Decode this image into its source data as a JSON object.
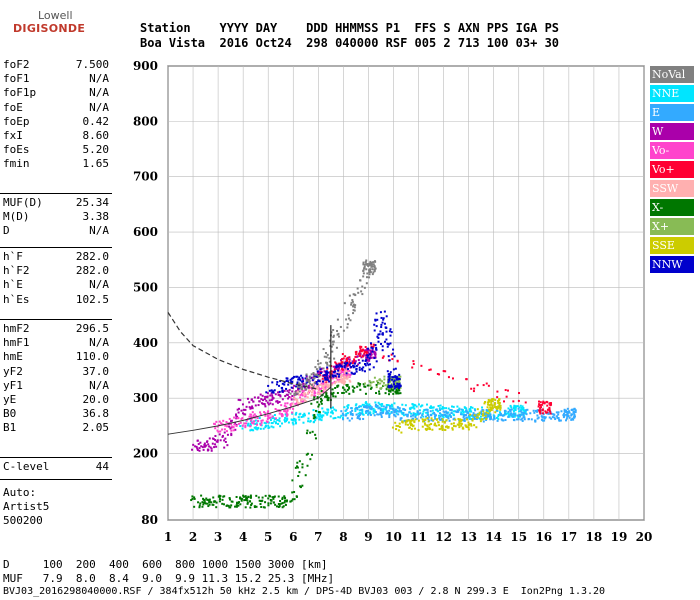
{
  "logo": {
    "line1": "Lowell",
    "line2": "DIGISONDE"
  },
  "header": {
    "row1": "Station    YYYY DAY    DDD HHMMSS P1  FFS S AXN PPS IGA PS",
    "row2": "Boa Vista  2016 Oct24  298 040000 RSF 005 2 713 100 03+ 30"
  },
  "params": {
    "group1": [
      {
        "label": "foF2",
        "value": "7.500"
      },
      {
        "label": "foF1",
        "value": "N/A"
      },
      {
        "label": "foF1p",
        "value": "N/A"
      },
      {
        "label": "foE",
        "value": "N/A"
      },
      {
        "label": "foEp",
        "value": "0.42"
      },
      {
        "label": "fxI",
        "value": "8.60"
      },
      {
        "label": "foEs",
        "value": "5.20"
      },
      {
        "label": "fmin",
        "value": "1.65"
      }
    ],
    "group2": [
      {
        "label": "MUF(D)",
        "value": "25.34"
      },
      {
        "label": "M(D)",
        "value": "3.38"
      },
      {
        "label": "D",
        "value": "N/A"
      }
    ],
    "group3": [
      {
        "label": "h`F",
        "value": "282.0"
      },
      {
        "label": "h`F2",
        "value": "282.0"
      },
      {
        "label": "h`E",
        "value": "N/A"
      },
      {
        "label": "h`Es",
        "value": "102.5"
      }
    ],
    "group4": [
      {
        "label": "hmF2",
        "value": "296.5"
      },
      {
        "label": "hmF1",
        "value": "N/A"
      },
      {
        "label": "hmE",
        "value": "110.0"
      },
      {
        "label": "yF2",
        "value": "37.0"
      },
      {
        "label": "yF1",
        "value": "N/A"
      },
      {
        "label": "yE",
        "value": "20.0"
      },
      {
        "label": "B0",
        "value": "36.8"
      },
      {
        "label": "B1",
        "value": "2.05"
      }
    ],
    "group5": [
      {
        "label": "C-level",
        "value": "44"
      }
    ]
  },
  "auto": {
    "line1": "Auto:",
    "line2": "Artist5",
    "line3": "500200"
  },
  "footer": {
    "row1": "D     100  200  400  600  800 1000 1500 3000 [km]",
    "row2": "MUF   7.9  8.0  8.4  9.0  9.9 11.3 15.2 25.3 [MHz]",
    "row3": "BVJ03_2016298040000.RSF / 384fx512h 50 kHz 2.5 km / DPS-4D BVJ03 003 / 2.8 N 299.3 E  Ion2Png 1.3.20"
  },
  "legend": [
    {
      "label": "NoVal",
      "color": "#808080"
    },
    {
      "label": "NNE",
      "color": "#00e5ff"
    },
    {
      "label": "E",
      "color": "#33aaff"
    },
    {
      "label": "W",
      "color": "#aa00aa"
    },
    {
      "label": "Vo-",
      "color": "#ff44cc"
    },
    {
      "label": "Vo+",
      "color": "#ff0033"
    },
    {
      "label": "SSW",
      "color": "#ffb0b0"
    },
    {
      "label": "X-",
      "color": "#007700"
    },
    {
      "label": "X+",
      "color": "#88bb55"
    },
    {
      "label": "SSE",
      "color": "#cccc00"
    },
    {
      "label": "NNW",
      "color": "#0000cc"
    }
  ],
  "chart_data": {
    "type": "scatter",
    "xlim": [
      1,
      20
    ],
    "ylim": [
      80,
      900
    ],
    "x_ticks": [
      1,
      2,
      3,
      4,
      5,
      6,
      7,
      8,
      9,
      10,
      11,
      12,
      13,
      14,
      15,
      16,
      17,
      18,
      19,
      20
    ],
    "y_ticks": [
      80,
      200,
      300,
      400,
      500,
      600,
      700,
      800,
      900
    ],
    "grid": true,
    "legend_position": "right",
    "profile_dashed": [
      [
        1,
        455
      ],
      [
        1.5,
        420
      ],
      [
        2,
        395
      ],
      [
        3,
        370
      ],
      [
        4,
        352
      ],
      [
        5,
        338
      ],
      [
        6,
        326
      ],
      [
        7,
        316
      ]
    ],
    "virtual_height_trace": [
      [
        1,
        235
      ],
      [
        2,
        242
      ],
      [
        3,
        250
      ],
      [
        4,
        260
      ],
      [
        5,
        272
      ],
      [
        6,
        285
      ],
      [
        7,
        300
      ],
      [
        7.5,
        320
      ]
    ],
    "foF2_marker": [
      [
        7.5,
        282
      ],
      [
        7.5,
        432
      ]
    ],
    "series": [
      {
        "name": "NNE",
        "color": "#00e5ff",
        "points": [
          [
            4,
            250
          ],
          [
            5,
            258
          ],
          [
            6,
            265
          ],
          [
            7,
            272
          ],
          [
            8,
            278
          ],
          [
            9,
            285
          ],
          [
            10,
            282
          ],
          [
            11,
            280
          ],
          [
            12,
            278
          ],
          [
            13,
            275
          ],
          [
            14,
            275
          ],
          [
            15,
            278
          ]
        ]
      },
      {
        "name": "E",
        "color": "#33aaff",
        "points": [
          [
            8,
            270
          ],
          [
            9,
            280
          ],
          [
            10,
            275
          ],
          [
            11,
            270
          ],
          [
            12,
            272
          ],
          [
            13,
            270
          ],
          [
            14,
            270
          ],
          [
            15,
            272
          ],
          [
            16,
            270
          ],
          [
            17,
            272
          ]
        ]
      },
      {
        "name": "W",
        "color": "#aa00aa",
        "points": [
          [
            2,
            215
          ],
          [
            3,
            220
          ],
          [
            4,
            290
          ],
          [
            5,
            300
          ],
          [
            6,
            310
          ],
          [
            7,
            340
          ],
          [
            8,
            360
          ],
          [
            9,
            380
          ]
        ]
      },
      {
        "name": "Vo-",
        "color": "#ff44cc",
        "points": [
          [
            3,
            250
          ],
          [
            4,
            260
          ],
          [
            5,
            270
          ],
          [
            6,
            290
          ],
          [
            7,
            320
          ],
          [
            8,
            350
          ]
        ]
      },
      {
        "name": "Vo+",
        "color": "#ff0033",
        "points": [
          [
            7,
            330
          ],
          [
            8,
            370
          ],
          [
            9,
            390
          ],
          [
            16,
            285
          ]
        ]
      },
      {
        "name": "SSW",
        "color": "#ffb0b0",
        "points": [
          [
            6,
            300
          ],
          [
            7,
            320
          ],
          [
            8,
            340
          ]
        ]
      },
      {
        "name": "X-",
        "color": "#007700",
        "points": [
          [
            2,
            115
          ],
          [
            3,
            115
          ],
          [
            4,
            115
          ],
          [
            5,
            115
          ],
          [
            6,
            115
          ],
          [
            7,
            300
          ],
          [
            8,
            320
          ],
          [
            10,
            320
          ]
        ]
      },
      {
        "name": "X+",
        "color": "#88bb55",
        "points": [
          [
            9,
            330
          ],
          [
            10,
            330
          ]
        ]
      },
      {
        "name": "SSE",
        "color": "#cccc00",
        "points": [
          [
            10,
            250
          ],
          [
            11,
            255
          ],
          [
            12,
            255
          ],
          [
            13,
            255
          ],
          [
            14,
            290
          ]
        ]
      },
      {
        "name": "NNW",
        "color": "#0000cc",
        "points": [
          [
            5,
            320
          ],
          [
            6,
            330
          ],
          [
            7,
            340
          ],
          [
            8,
            355
          ],
          [
            9,
            360
          ],
          [
            9.5,
            450
          ],
          [
            10,
            330
          ]
        ]
      },
      {
        "name": "NoVal",
        "color": "#808080",
        "points": [
          [
            6,
            310
          ],
          [
            7,
            350
          ],
          [
            8,
            440
          ],
          [
            9,
            540
          ]
        ]
      }
    ]
  }
}
